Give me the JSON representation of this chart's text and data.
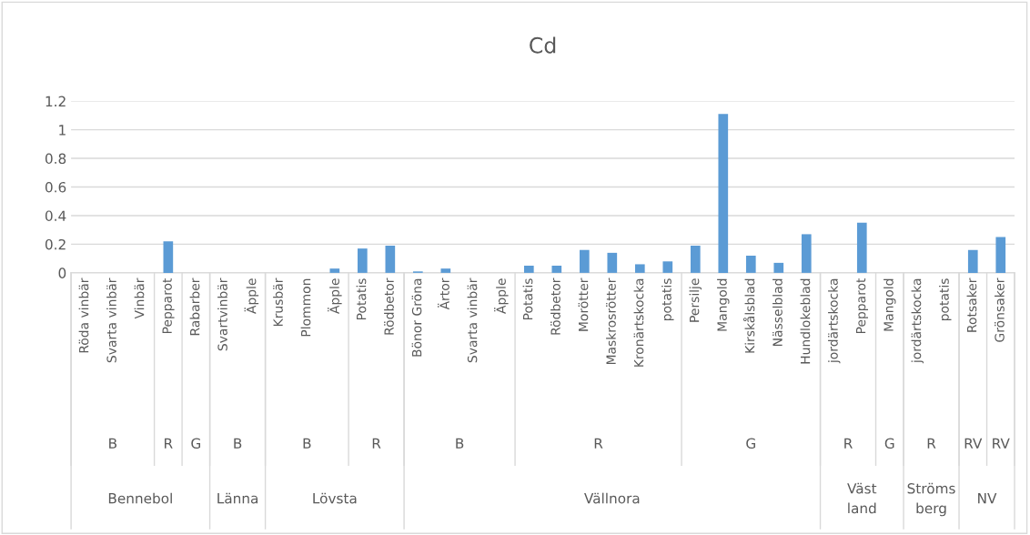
{
  "chart_data": {
    "type": "bar",
    "title": "Cd",
    "categories": [
      "Röda vinbär",
      "Svarta vinbär",
      "Vinbär",
      "Pepparot",
      "Rabarber",
      "Svartvinbär",
      "Äpple",
      "Krusbär",
      "Plommon",
      "Äpple",
      "Potatis",
      "Rödbetor",
      "Bönor Gröna",
      "Ärtor",
      "Svarta vinbär",
      "Äpple",
      "Potatis",
      "Rödbetor",
      "Morötter",
      "Maskrosrötter",
      "Kronärtskocka",
      "potatis",
      "Persilje",
      "Mangold",
      "Kirskålsblad",
      "Nässelblad",
      "Hundlokeblad",
      "jordärtskocka",
      "Pepparot",
      "Mangold",
      "jordärtskocka",
      "potatis",
      "Rotsaker",
      "Grönsaker"
    ],
    "values": [
      null,
      null,
      null,
      0.22,
      null,
      null,
      null,
      null,
      null,
      0.03,
      0.17,
      0.19,
      0.01,
      0.03,
      null,
      null,
      0.05,
      0.05,
      0.16,
      0.14,
      0.06,
      0.08,
      0.19,
      1.11,
      0.12,
      0.07,
      0.27,
      null,
      0.35,
      null,
      null,
      null,
      0.16,
      0.25
    ],
    "color": "#5b9bd5",
    "ylim": [
      0,
      1.2
    ],
    "yticks": [
      0,
      0.2,
      0.4,
      0.6,
      0.8,
      1,
      1.2
    ],
    "grid": "y",
    "annotations": [
      "B",
      "R",
      "G",
      "B",
      "B",
      "R",
      "B",
      "R",
      "G",
      "R",
      "G",
      "R",
      "RV",
      "RV",
      "Bennebol",
      "Länna",
      "Lövsta",
      "Vällnora",
      "Väst\nland",
      "Ströms\nberg",
      "NV"
    ]
  }
}
